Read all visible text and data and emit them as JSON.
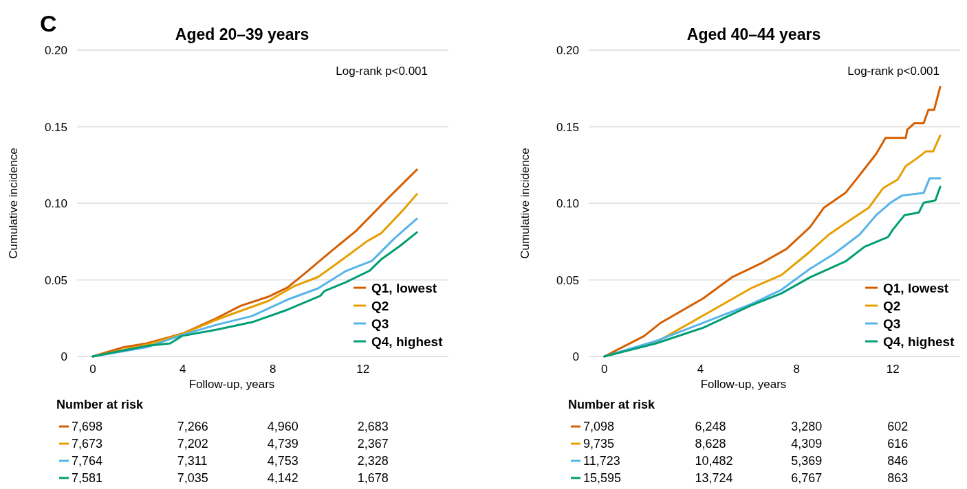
{
  "chart_data": [
    {
      "type": "line",
      "title": "Aged 20–39 years",
      "xlabel": "Follow-up, years",
      "ylabel": "Cumulative incidence",
      "xlim": [
        -0.7,
        15.8
      ],
      "xticks": [
        0,
        4,
        8,
        12
      ],
      "ylim": [
        0,
        0.2
      ],
      "yticks": [
        0,
        {
          "value": 0.05,
          "label": "0.05"
        },
        {
          "value": 0.1,
          "label": "0.10"
        },
        {
          "value": 0.15,
          "label": "0.15"
        },
        {
          "value": 0.2,
          "label": "0.20"
        }
      ],
      "grid": "y",
      "legend": "bottom right",
      "marker": "none",
      "line_style": "solid",
      "series": [
        {
          "name": "Q1, lowest",
          "color": "#d55e00",
          "x": [
            0,
            1.35,
            2.4,
            4.0,
            5.5,
            6.56,
            7.8,
            8.65,
            9.4,
            10.7,
            11.7,
            13.1,
            14.4
          ],
          "values": [
            0,
            0.006,
            0.0085,
            0.015,
            0.025,
            0.033,
            0.039,
            0.045,
            0.054,
            0.07,
            0.082,
            0.103,
            0.122
          ]
        },
        {
          "name": "Q2",
          "color": "#e69f00",
          "x": [
            0,
            2.4,
            4.0,
            5.5,
            6.56,
            7.8,
            8.96,
            10.0,
            11.0,
            12.2,
            12.8,
            13.75,
            14.4
          ],
          "values": [
            0,
            0.0077,
            0.0147,
            0.024,
            0.0297,
            0.0362,
            0.046,
            0.0518,
            0.0623,
            0.0754,
            0.0803,
            0.095,
            0.106
          ]
        },
        {
          "name": "Q3",
          "color": "#56b4e9",
          "x": [
            0,
            2.4,
            4.0,
            5.5,
            7.08,
            8.65,
            10.0,
            11.25,
            12.4,
            13.4,
            14.4
          ],
          "values": [
            0,
            0.006,
            0.0142,
            0.0207,
            0.0264,
            0.0371,
            0.0444,
            0.0558,
            0.0624,
            0.0771,
            0.09
          ]
        },
        {
          "name": "Q4, highest",
          "color": "#009e73",
          "x": [
            0,
            2.4,
            3.44,
            3.96,
            5.5,
            7.08,
            8.65,
            10.1,
            10.3,
            11.25,
            12.3,
            12.8,
            13.65,
            14.4
          ],
          "values": [
            0,
            0.0069,
            0.0085,
            0.0134,
            0.0175,
            0.0224,
            0.0305,
            0.0395,
            0.0428,
            0.0485,
            0.056,
            0.0632,
            0.0722,
            0.081
          ]
        }
      ],
      "annotations": [
        "C",
        "Log-rank p<0.001",
        "Number at risk",
        "7,698",
        "7,266",
        "4,960",
        "2,683",
        "7,673",
        "7,202",
        "4,739",
        "2,367",
        "7,764",
        "7,311",
        "4,753",
        "2,328",
        "7,581",
        "7,035",
        "4,142",
        "1,678"
      ]
    },
    {
      "type": "line",
      "title": "Aged 40–44 years",
      "xlabel": "Follow-up, years",
      "ylabel": "Cumulative incidence",
      "xlim": [
        -0.65,
        14.8
      ],
      "xticks": [
        0,
        4,
        8,
        12
      ],
      "ylim": [
        0,
        0.2
      ],
      "yticks": [
        0,
        {
          "value": 0.05,
          "label": "0.05"
        },
        {
          "value": 0.1,
          "label": "0.10"
        },
        {
          "value": 0.15,
          "label": "0.15"
        },
        {
          "value": 0.2,
          "label": "0.20"
        }
      ],
      "grid": "y",
      "legend": "bottom right",
      "marker": "none",
      "line_style": "solid",
      "series": [
        {
          "name": "Q1, lowest",
          "color": "#d55e00",
          "x": [
            0,
            1.65,
            2.35,
            4.12,
            5.3,
            6.58,
            7.57,
            8.55,
            9.14,
            10.03,
            10.52,
            11.31,
            11.7,
            12.54,
            12.6,
            12.89,
            13.28,
            13.48,
            13.72,
            13.97
          ],
          "values": [
            0,
            0.0133,
            0.022,
            0.038,
            0.0516,
            0.0613,
            0.0701,
            0.0844,
            0.0972,
            0.1068,
            0.1164,
            0.1323,
            0.1427,
            0.1427,
            0.148,
            0.1522,
            0.1522,
            0.161,
            0.161,
            0.176
          ]
        },
        {
          "name": "Q2",
          "color": "#e69f00",
          "x": [
            0,
            2.15,
            4.12,
            6.09,
            7.37,
            8.55,
            9.34,
            10.23,
            11.0,
            11.6,
            12.2,
            12.54,
            12.98,
            13.38,
            13.68,
            13.97
          ],
          "values": [
            0,
            0.0093,
            0.0268,
            0.0444,
            0.0532,
            0.0684,
            0.0796,
            0.0891,
            0.0971,
            0.11,
            0.1155,
            0.1243,
            0.1291,
            0.1339,
            0.1339,
            0.1442
          ]
        },
        {
          "name": "Q3",
          "color": "#56b4e9",
          "x": [
            0,
            2.15,
            4.12,
            6.09,
            7.37,
            8.55,
            9.54,
            10.62,
            11.31,
            11.9,
            12.39,
            13.28,
            13.53,
            13.97
          ],
          "values": [
            0,
            0.0101,
            0.022,
            0.034,
            0.0436,
            0.0572,
            0.0668,
            0.0796,
            0.0923,
            0.1003,
            0.1051,
            0.1067,
            0.1163,
            0.1163
          ]
        },
        {
          "name": "Q4, highest",
          "color": "#009e73",
          "x": [
            0,
            2.15,
            4.12,
            6.09,
            7.37,
            8.55,
            10.03,
            10.82,
            11.8,
            12.0,
            12.49,
            13.08,
            13.28,
            13.77,
            13.97
          ],
          "values": [
            0,
            0.0085,
            0.0188,
            0.0332,
            0.0412,
            0.0516,
            0.062,
            0.0716,
            0.078,
            0.0828,
            0.0923,
            0.0939,
            0.1003,
            0.1019,
            0.1107
          ]
        }
      ],
      "annotations": [
        "Log-rank p<0.001",
        "Number at risk",
        "7,098",
        "6,248",
        "3,280",
        "602",
        "9,735",
        "8,628",
        "4,309",
        "616",
        "11,723",
        "10,482",
        "5,369",
        "846",
        "15,595",
        "13,724",
        "6,767",
        "863"
      ]
    }
  ]
}
